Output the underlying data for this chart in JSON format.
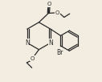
{
  "background_color": "#f2ede0",
  "line_color": "#2a2a2a",
  "line_width": 0.9,
  "figsize": [
    1.27,
    1.02
  ],
  "dpi": 100,
  "xlim": [
    0,
    10
  ],
  "ylim": [
    0,
    8
  ]
}
